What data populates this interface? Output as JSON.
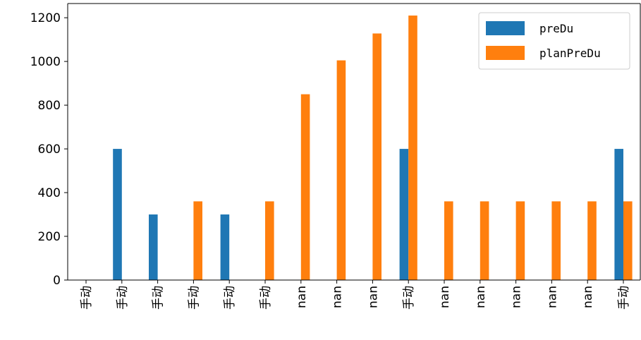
{
  "chart_data": {
    "type": "bar",
    "categories": [
      "手动",
      "手动",
      "手动",
      "手动",
      "手动",
      "手动",
      "nan",
      "nan",
      "nan",
      "手动",
      "nan",
      "nan",
      "nan",
      "nan",
      "nan",
      "手动"
    ],
    "series": [
      {
        "name": "preDu",
        "color": "#1f77b4",
        "values": [
          0,
          600,
          300,
          0,
          300,
          0,
          0,
          0,
          0,
          600,
          0,
          0,
          0,
          0,
          0,
          600
        ]
      },
      {
        "name": "planPreDu",
        "color": "#ff7f0e",
        "values": [
          0,
          0,
          0,
          360,
          0,
          360,
          850,
          1005,
          1128,
          1210,
          360,
          360,
          360,
          360,
          360,
          360
        ]
      }
    ],
    "y_ticks": [
      0,
      200,
      400,
      600,
      800,
      1000,
      1200
    ],
    "ylim": [
      0,
      1265
    ],
    "legend_position": "top-right",
    "grid": false
  }
}
